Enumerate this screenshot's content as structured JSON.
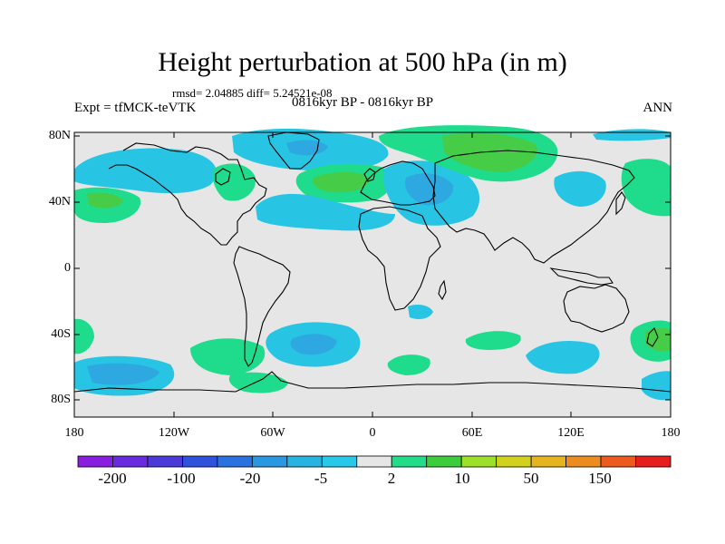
{
  "title": "Height perturbation at 500 hPa (in m)",
  "rmsd_line": "rmsd= 2.04885  diff= 5.24521e-08",
  "experiment_label": "Expt = tfMCK-teVTK",
  "period_label": "0816kyr BP - 0816kyr BP",
  "season_label": "ANN",
  "lat_ticks": [
    "80N",
    "40N",
    "0",
    "40S",
    "80S"
  ],
  "lon_ticks": [
    "180",
    "120W",
    "60W",
    "0",
    "60E",
    "120E",
    "180"
  ],
  "colorbar": {
    "labels": [
      "-200",
      "-100",
      "-20",
      "-5",
      "2",
      "10",
      "50",
      "150"
    ],
    "colors": [
      "#8a1ee0",
      "#6a2ae0",
      "#4a3ad8",
      "#2e52dc",
      "#2a72e0",
      "#2a98e0",
      "#28b4e0",
      "#28c8e8",
      "#e6e6e6",
      "#22dc8a",
      "#3ccc3c",
      "#9ce02a",
      "#d2d21e",
      "#e6b41e",
      "#ec8c1e",
      "#ec5a1e",
      "#e61e1e"
    ]
  },
  "palette": {
    "map_background": "#e6e6e6",
    "neg_light": "#28c4e4",
    "neg_mid": "#2ea8e0",
    "pos_light": "#1fdc8c",
    "pos_mid": "#46cc46",
    "coast": "#000000"
  }
}
